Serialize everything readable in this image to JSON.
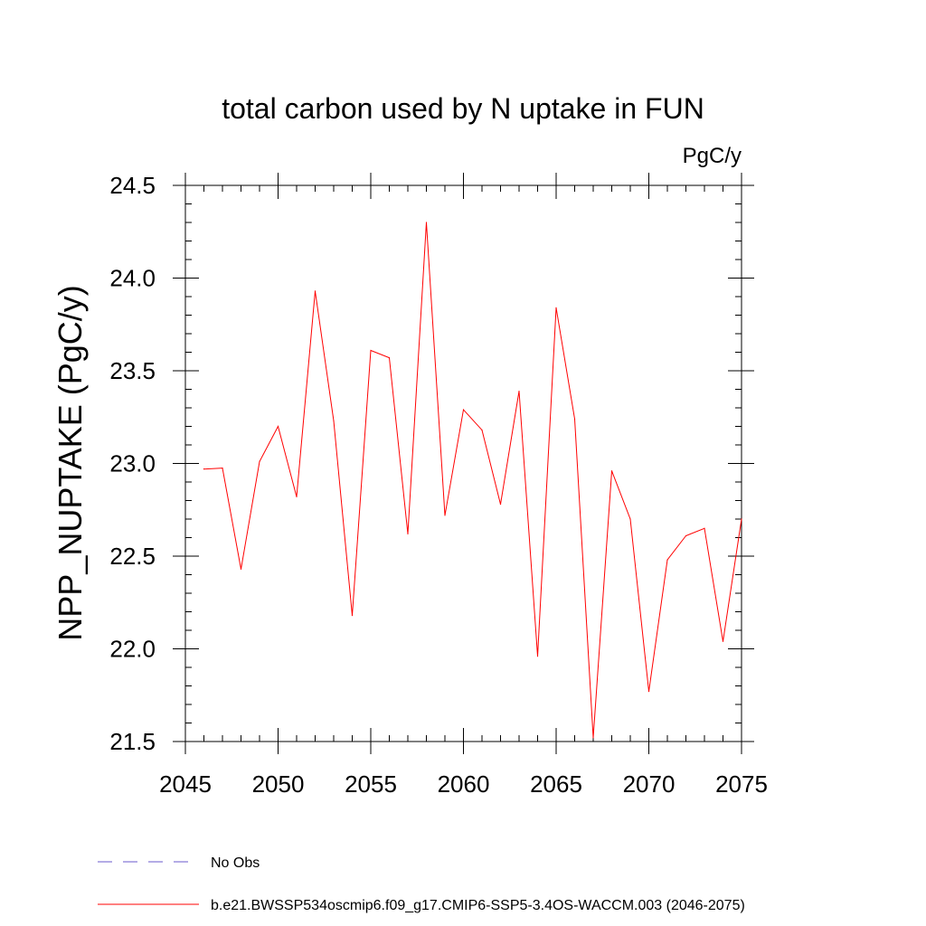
{
  "chart_data": {
    "type": "line",
    "title": "total carbon used by N uptake in FUN",
    "units_label": "PgC/y",
    "xlabel": "",
    "ylabel": "NPP_NUPTAKE  (PgC/y)",
    "xlim": [
      2045,
      2075
    ],
    "ylim": [
      21.5,
      24.5
    ],
    "x_ticks": [
      2045,
      2050,
      2055,
      2060,
      2065,
      2070,
      2075
    ],
    "y_ticks": [
      "21.5",
      "22.0",
      "22.5",
      "23.0",
      "23.5",
      "24.0",
      "24.5"
    ],
    "grid": false,
    "series": [
      {
        "name": "b.e21.BWSSP534oscmip6.f09_g17.CMIP6-SSP5-3.4OS-WACCM.003 (2046-2075)",
        "color": "#ff0000",
        "x": [
          2046,
          2047,
          2048,
          2049,
          2050,
          2051,
          2052,
          2053,
          2054,
          2055,
          2056,
          2057,
          2058,
          2059,
          2060,
          2061,
          2062,
          2063,
          2064,
          2065,
          2066,
          2067,
          2068,
          2069,
          2070,
          2071,
          2072,
          2073,
          2074,
          2075
        ],
        "values": [
          22.97,
          22.975,
          22.43,
          23.01,
          23.2,
          22.82,
          23.93,
          23.23,
          22.18,
          23.61,
          23.57,
          22.62,
          24.3,
          22.72,
          23.29,
          23.18,
          22.78,
          23.39,
          21.96,
          23.84,
          23.24,
          21.52,
          22.96,
          22.7,
          21.77,
          22.48,
          22.61,
          22.65,
          22.04,
          22.7
        ]
      }
    ],
    "legend": [
      {
        "label": "No Obs",
        "color": "#6a5acd",
        "style": "dashed"
      },
      {
        "label": "b.e21.BWSSP534oscmip6.f09_g17.CMIP6-SSP5-3.4OS-WACCM.003 (2046-2075)",
        "color": "#ff0000",
        "style": "solid"
      }
    ],
    "legend_position": "bottom-left"
  }
}
